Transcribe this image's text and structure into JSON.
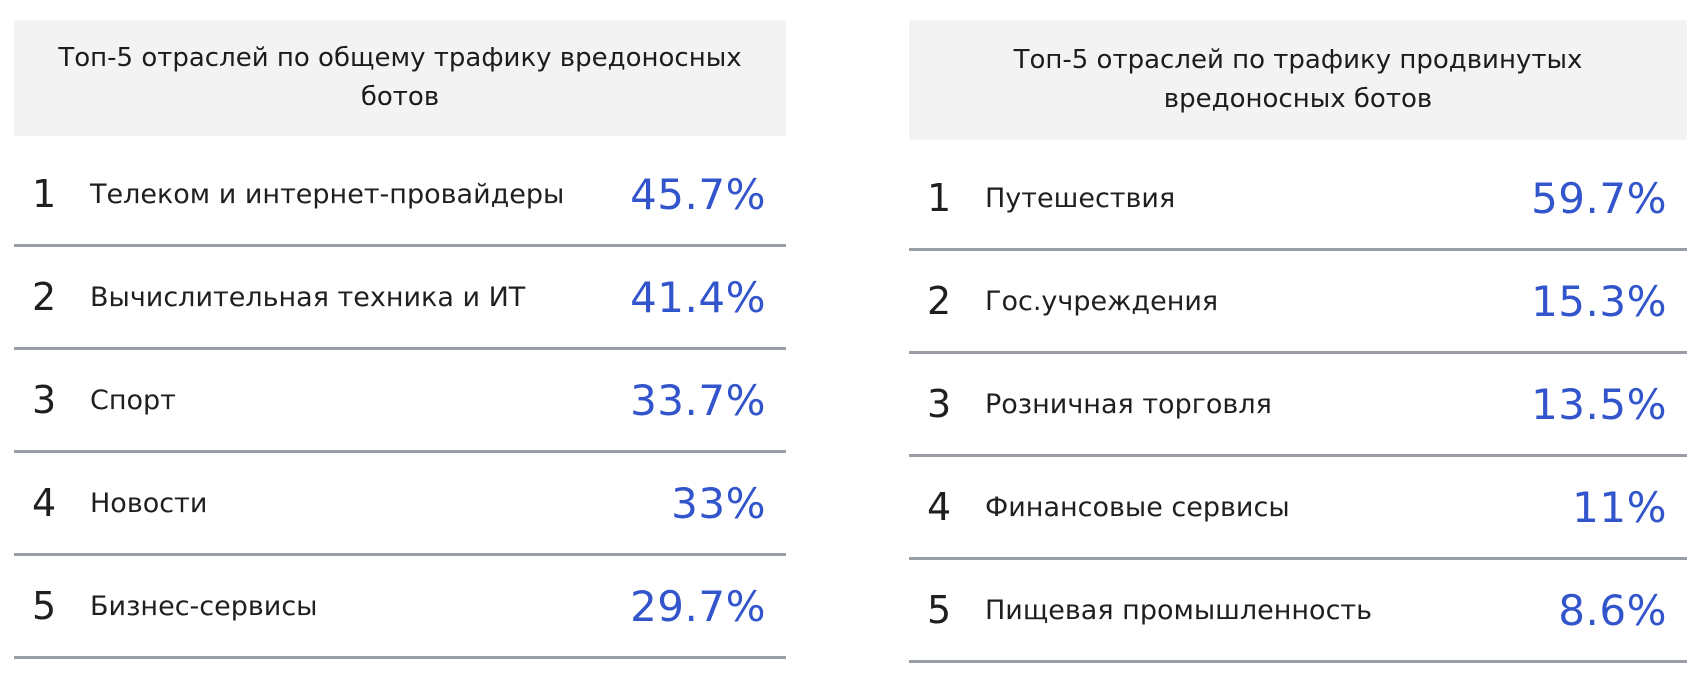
{
  "colors": {
    "accent": "#3355cc",
    "header_bg": "#f3f3f3",
    "divider": "#9a9ea6"
  },
  "chart_data": [
    {
      "type": "table",
      "title": "Топ-5 отраслей по общему трафику вредоносных ботов",
      "rows": [
        {
          "rank": "1",
          "label": "Телеком и интернет-провайдеры",
          "value": "45.7%"
        },
        {
          "rank": "2",
          "label": "Вычислительная техника и ИТ",
          "value": "41.4%"
        },
        {
          "rank": "3",
          "label": "Спорт",
          "value": "33.7%"
        },
        {
          "rank": "4",
          "label": "Новости",
          "value": "33%"
        },
        {
          "rank": "5",
          "label": "Бизнес-сервисы",
          "value": "29.7%"
        }
      ]
    },
    {
      "type": "table",
      "title": "Топ-5 отраслей по трафику продвинутых вредоносных ботов",
      "rows": [
        {
          "rank": "1",
          "label": "Путешествия",
          "value": "59.7%"
        },
        {
          "rank": "2",
          "label": "Гос.учреждения",
          "value": "15.3%"
        },
        {
          "rank": "3",
          "label": "Розничная торговля",
          "value": "13.5%"
        },
        {
          "rank": "4",
          "label": "Финансовые сервисы",
          "value": "11%"
        },
        {
          "rank": "5",
          "label": "Пищевая промышленность",
          "value": "8.6%"
        }
      ]
    }
  ]
}
